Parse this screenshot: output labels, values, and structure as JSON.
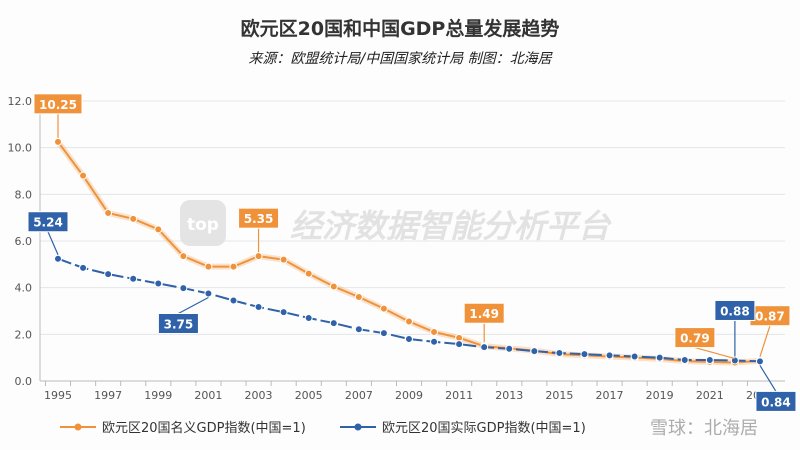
{
  "chart_data": {
    "type": "line",
    "title": "欧元区20国和中国GDP总量发展趋势",
    "subtitle": "来源：欧盟统计局/中国国家统计局 制图：北海居",
    "x": [
      1995,
      1996,
      1997,
      1998,
      1999,
      2000,
      2001,
      2002,
      2003,
      2004,
      2005,
      2006,
      2007,
      2008,
      2009,
      2010,
      2011,
      2012,
      2013,
      2014,
      2015,
      2016,
      2017,
      2018,
      2019,
      2020,
      2021,
      2022,
      2023
    ],
    "x_tick_labels": [
      "1995",
      "1997",
      "1999",
      "2001",
      "2003",
      "2005",
      "2007",
      "2009",
      "2011",
      "2013",
      "2015",
      "2017",
      "2019",
      "2021",
      "2023"
    ],
    "y_tick_labels": [
      "0.0",
      "2.0",
      "4.0",
      "6.0",
      "8.0",
      "10.0",
      "12.0"
    ],
    "ylim": [
      0,
      12
    ],
    "grid": true,
    "legend_position": "bottom",
    "series": [
      {
        "name": "欧元区20国名义GDP指数(中国=1)",
        "color": "#f0923a",
        "values": [
          10.25,
          8.8,
          7.2,
          6.95,
          6.5,
          5.35,
          4.9,
          4.9,
          5.35,
          5.2,
          4.6,
          4.05,
          3.6,
          3.1,
          2.55,
          2.1,
          1.85,
          1.49,
          1.4,
          1.3,
          1.15,
          1.1,
          1.05,
          1.0,
          0.95,
          0.85,
          0.82,
          0.79,
          0.87
        ]
      },
      {
        "name": "欧元区20国实际GDP指数(中国=1)",
        "color": "#2f62a8",
        "values": [
          5.24,
          4.85,
          4.58,
          4.38,
          4.18,
          3.98,
          3.75,
          3.45,
          3.17,
          2.95,
          2.7,
          2.48,
          2.22,
          2.05,
          1.8,
          1.68,
          1.58,
          1.45,
          1.38,
          1.28,
          1.2,
          1.15,
          1.1,
          1.05,
          1.0,
          0.9,
          0.9,
          0.88,
          0.84
        ]
      }
    ],
    "annotations": [
      {
        "series": 0,
        "year": 1995,
        "text": "10.25"
      },
      {
        "series": 0,
        "year": 2003,
        "text": "5.35"
      },
      {
        "series": 0,
        "year": 2012,
        "text": "1.49"
      },
      {
        "series": 0,
        "year": 2022,
        "text": "0.79"
      },
      {
        "series": 0,
        "year": 2023,
        "text": "0.87"
      },
      {
        "series": 1,
        "year": 1995,
        "text": "5.24"
      },
      {
        "series": 1,
        "year": 2001,
        "text": "3.75"
      },
      {
        "series": 1,
        "year": 2022,
        "text": "0.88"
      },
      {
        "series": 1,
        "year": 2023,
        "text": "0.84"
      }
    ]
  },
  "watermarks": {
    "platform_logo": "top",
    "platform": "经济数据智能分析平台",
    "xueqiu": "雪球：北海居"
  }
}
